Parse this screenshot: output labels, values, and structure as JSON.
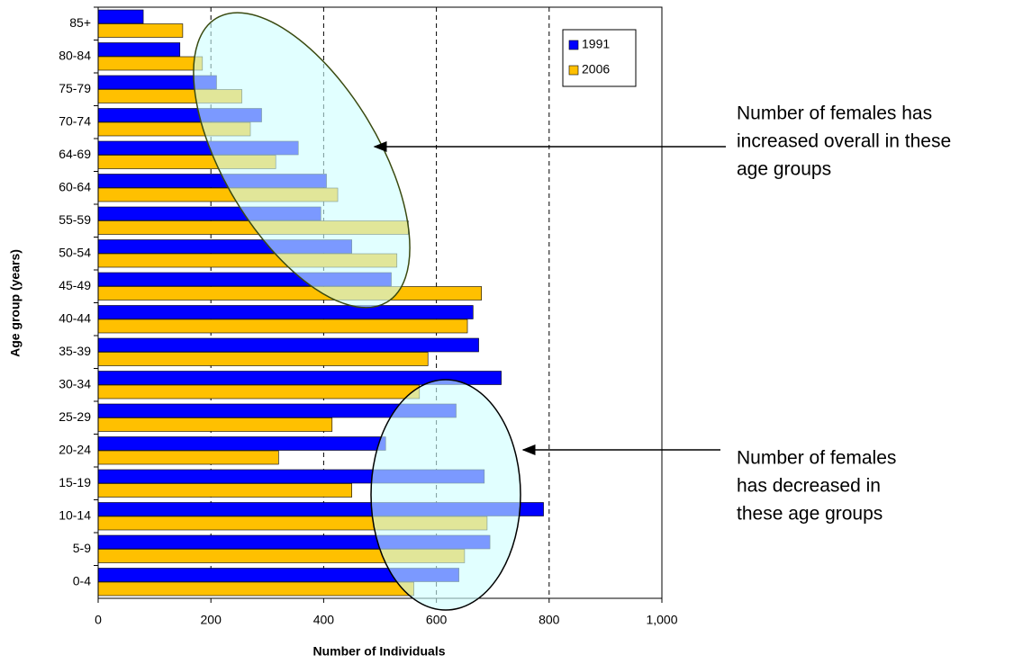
{
  "chart_data": {
    "type": "hbar",
    "x_label": "Number of Individuals",
    "y_label": "Age group (years)",
    "categories": [
      "0-4",
      "5-9",
      "10-14",
      "15-19",
      "20-24",
      "25-29",
      "30-34",
      "35-39",
      "40-44",
      "45-49",
      "50-54",
      "55-59",
      "60-64",
      "64-69",
      "70-74",
      "75-79",
      "80-84",
      "85+"
    ],
    "series": [
      {
        "name": "1991",
        "color": "#0000ff",
        "values": [
          640,
          695,
          790,
          685,
          510,
          635,
          715,
          675,
          665,
          520,
          450,
          395,
          405,
          355,
          290,
          210,
          145,
          80
        ]
      },
      {
        "name": "2006",
        "color": "#ffc000",
        "values": [
          560,
          650,
          690,
          450,
          320,
          415,
          570,
          585,
          655,
          680,
          530,
          550,
          425,
          315,
          270,
          255,
          185,
          150
        ]
      }
    ],
    "xlim": [
      0,
      1000
    ],
    "xticks": [
      0,
      200,
      400,
      600,
      800,
      {
        "value": 1000,
        "label": "1,000"
      }
    ],
    "grid": true,
    "legend": "upper right",
    "annotations": [
      [
        "Number of females has",
        "increased overall in these",
        "age groups"
      ],
      [
        "Number of females",
        "has decreased in",
        "these age groups"
      ]
    ]
  }
}
